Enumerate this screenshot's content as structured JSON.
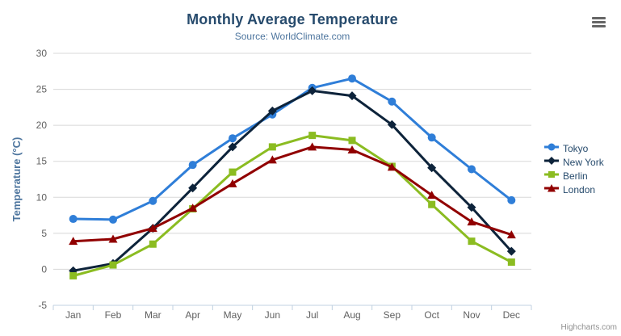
{
  "header": {
    "title": "Monthly Average Temperature",
    "subtitle": "Source: WorldClimate.com"
  },
  "export_menu": {
    "icon": "hamburger-menu-icon",
    "tooltip": "Chart context menu"
  },
  "credits": {
    "label": "Highcharts.com"
  },
  "chart_data": {
    "type": "line",
    "title": "Monthly Average Temperature",
    "subtitle": "Source: WorldClimate.com",
    "xlabel": "",
    "ylabel": "Temperature (°C)",
    "ylim": [
      -5,
      30
    ],
    "ytick_step": 5,
    "yticks": [
      30,
      25,
      20,
      15,
      10,
      5,
      0,
      -5
    ],
    "grid": true,
    "legend_position": "right",
    "categories": [
      "Jan",
      "Feb",
      "Mar",
      "Apr",
      "May",
      "Jun",
      "Jul",
      "Aug",
      "Sep",
      "Oct",
      "Nov",
      "Dec"
    ],
    "series": [
      {
        "name": "Tokyo",
        "color": "#2f7ed8",
        "marker": "circle",
        "values": [
          7.0,
          6.9,
          9.5,
          14.5,
          18.2,
          21.5,
          25.2,
          26.5,
          23.3,
          18.3,
          13.9,
          9.6
        ]
      },
      {
        "name": "New York",
        "color": "#0d233a",
        "marker": "diamond",
        "values": [
          -0.2,
          0.8,
          5.7,
          11.3,
          17.0,
          22.0,
          24.8,
          24.1,
          20.1,
          14.1,
          8.6,
          2.5
        ]
      },
      {
        "name": "Berlin",
        "color": "#8bbc21",
        "marker": "square",
        "values": [
          -0.9,
          0.6,
          3.5,
          8.4,
          13.5,
          17.0,
          18.6,
          17.9,
          14.3,
          9.0,
          3.9,
          1.0
        ]
      },
      {
        "name": "London",
        "color": "#910000",
        "marker": "triangle",
        "values": [
          3.9,
          4.2,
          5.7,
          8.5,
          11.9,
          15.2,
          17.0,
          16.6,
          14.2,
          10.3,
          6.6,
          4.8
        ]
      }
    ]
  },
  "style_colors": {
    "title": "#274b6d",
    "subtitle": "#4d759e",
    "axis_title": "#4d759e",
    "tick_label": "#606060",
    "grid_line": "#d8d8d8",
    "axis_line": "#c0d0e0",
    "legend_text": "#274b6d",
    "credits": "#909090"
  }
}
